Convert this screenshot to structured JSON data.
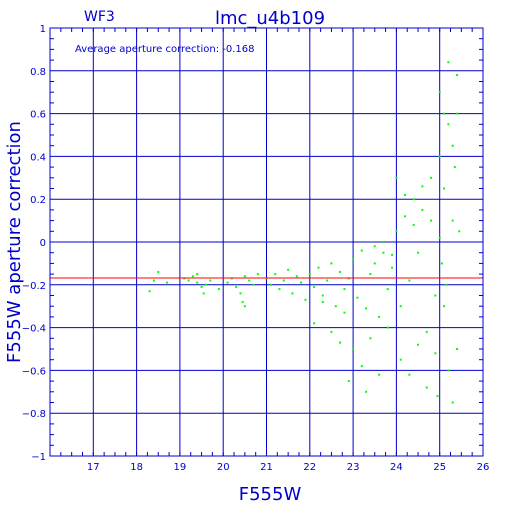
{
  "chart_data": {
    "type": "scatter",
    "title": "lmc_u4b109",
    "subtitle": "WF3",
    "annotation": "Average aperture correction: -0.168",
    "xlabel": "F555W",
    "ylabel": "F555W aperture correction",
    "xlim": [
      16,
      26
    ],
    "ylim": [
      -1,
      1
    ],
    "x_ticks": [
      17,
      18,
      19,
      20,
      21,
      22,
      23,
      24,
      25,
      26
    ],
    "y_ticks": [
      -1,
      -0.8,
      -0.6,
      -0.4,
      -0.2,
      0,
      0.2,
      0.4,
      0.6,
      0.8,
      1
    ],
    "grid": true,
    "average_line": -0.168,
    "colors": {
      "axes": "#0000cc",
      "grid": "#0000cc",
      "points": "#00ff00",
      "average_line": "#ff0000"
    },
    "series": [
      {
        "values": [
          [
            18.5,
            -0.14
          ],
          [
            18.4,
            -0.18
          ],
          [
            18.3,
            -0.23
          ],
          [
            18.7,
            -0.19
          ],
          [
            19.1,
            -0.17
          ],
          [
            19.2,
            -0.18
          ],
          [
            19.3,
            -0.16
          ],
          [
            19.4,
            -0.19
          ],
          [
            19.5,
            -0.21
          ],
          [
            19.6,
            -0.2
          ],
          [
            19.7,
            -0.18
          ],
          [
            19.55,
            -0.24
          ],
          [
            19.4,
            -0.15
          ],
          [
            19.9,
            -0.22
          ],
          [
            20.1,
            -0.19
          ],
          [
            20.2,
            -0.17
          ],
          [
            20.3,
            -0.21
          ],
          [
            20.4,
            -0.24
          ],
          [
            20.5,
            -0.16
          ],
          [
            20.6,
            -0.18
          ],
          [
            20.7,
            -0.2
          ],
          [
            20.45,
            -0.28
          ],
          [
            20.5,
            -0.3
          ],
          [
            20.8,
            -0.15
          ],
          [
            21.0,
            -0.17
          ],
          [
            21.1,
            -0.2
          ],
          [
            21.2,
            -0.15
          ],
          [
            21.3,
            -0.22
          ],
          [
            21.4,
            -0.18
          ],
          [
            21.5,
            -0.13
          ],
          [
            21.6,
            -0.24
          ],
          [
            21.7,
            -0.16
          ],
          [
            21.8,
            -0.19
          ],
          [
            21.9,
            -0.27
          ],
          [
            22.0,
            -0.15
          ],
          [
            22.1,
            -0.21
          ],
          [
            22.2,
            -0.12
          ],
          [
            22.3,
            -0.25
          ],
          [
            22.4,
            -0.18
          ],
          [
            22.5,
            -0.1
          ],
          [
            22.6,
            -0.3
          ],
          [
            22.7,
            -0.14
          ],
          [
            22.8,
            -0.22
          ],
          [
            22.9,
            -0.17
          ],
          [
            22.1,
            -0.38
          ],
          [
            22.3,
            -0.28
          ],
          [
            22.5,
            -0.42
          ],
          [
            22.7,
            -0.47
          ],
          [
            22.8,
            -0.33
          ],
          [
            23.0,
            -0.08
          ],
          [
            23.1,
            -0.26
          ],
          [
            23.2,
            -0.04
          ],
          [
            23.3,
            -0.31
          ],
          [
            23.4,
            -0.15
          ],
          [
            23.5,
            -0.1
          ],
          [
            23.6,
            -0.35
          ],
          [
            23.7,
            -0.05
          ],
          [
            23.8,
            -0.22
          ],
          [
            23.9,
            -0.12
          ],
          [
            23.0,
            -0.5
          ],
          [
            23.2,
            -0.58
          ],
          [
            23.4,
            -0.45
          ],
          [
            23.6,
            -0.62
          ],
          [
            23.8,
            -0.4
          ],
          [
            22.9,
            -0.65
          ],
          [
            23.3,
            -0.7
          ],
          [
            23.5,
            -0.02
          ],
          [
            23.7,
            0.0
          ],
          [
            23.9,
            -0.06
          ],
          [
            24.0,
            0.05
          ],
          [
            24.1,
            -0.3
          ],
          [
            24.2,
            0.12
          ],
          [
            24.3,
            -0.18
          ],
          [
            24.4,
            0.2
          ],
          [
            24.5,
            -0.05
          ],
          [
            24.6,
            0.15
          ],
          [
            24.7,
            -0.42
          ],
          [
            24.8,
            0.1
          ],
          [
            24.9,
            -0.25
          ],
          [
            24.1,
            -0.55
          ],
          [
            24.3,
            -0.62
          ],
          [
            24.5,
            -0.48
          ],
          [
            24.7,
            -0.68
          ],
          [
            24.9,
            -0.52
          ],
          [
            24.0,
            0.3
          ],
          [
            24.2,
            0.22
          ],
          [
            24.4,
            0.08
          ],
          [
            24.6,
            0.26
          ],
          [
            24.8,
            0.3
          ],
          [
            25.0,
            0.4
          ],
          [
            25.1,
            0.25
          ],
          [
            25.2,
            0.55
          ],
          [
            25.3,
            0.1
          ],
          [
            25.4,
            0.6
          ],
          [
            25.0,
            0.02
          ],
          [
            25.1,
            -0.3
          ],
          [
            25.2,
            -0.6
          ],
          [
            25.3,
            -0.75
          ],
          [
            25.4,
            -0.5
          ],
          [
            25.0,
            0.7
          ],
          [
            25.2,
            0.84
          ],
          [
            25.4,
            0.78
          ],
          [
            25.1,
            0.6
          ],
          [
            25.3,
            0.45
          ],
          [
            24.95,
            -0.72
          ],
          [
            25.15,
            -0.2
          ],
          [
            25.35,
            0.35
          ],
          [
            25.45,
            0.05
          ],
          [
            25.05,
            -0.1
          ]
        ]
      }
    ]
  }
}
